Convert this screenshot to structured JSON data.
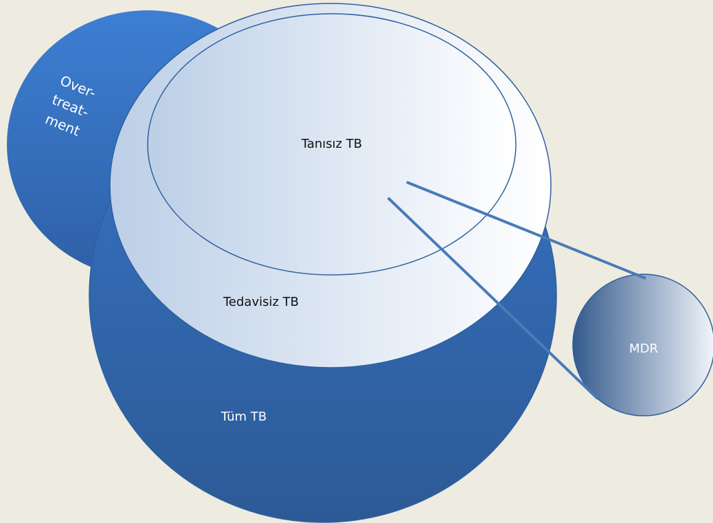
{
  "nodes": [
    {
      "id": "overtreatment",
      "lines": [
        "Over-",
        "treat-",
        "ment"
      ]
    },
    {
      "id": "tum",
      "label": "Tüm TB"
    },
    {
      "id": "tedavisiz",
      "label": "Tedavisiz TB"
    },
    {
      "id": "tanisiz",
      "label": "Tanısız TB"
    },
    {
      "id": "mdr",
      "label": "MDR"
    }
  ]
}
